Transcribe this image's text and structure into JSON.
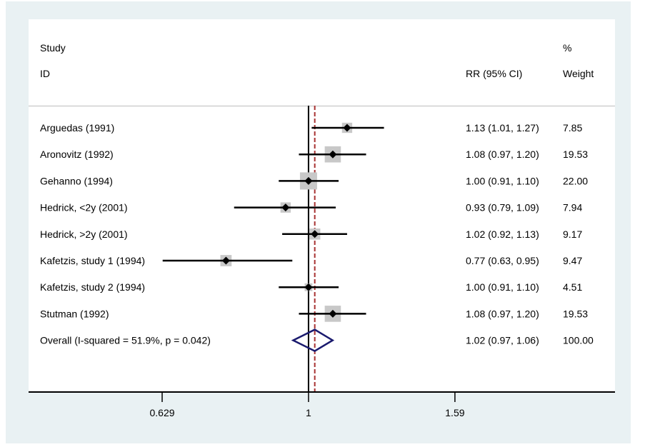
{
  "chart_data": {
    "type": "forest",
    "xscale": "log",
    "xlim": [
      0.412,
      2.64
    ],
    "reference_line": 1,
    "overall_line": 1.02,
    "headers": {
      "study_top": "Study",
      "study_bottom": "ID",
      "rr": "RR (95% CI)",
      "weight_top": "%",
      "weight_bottom": "Weight"
    },
    "studies": [
      {
        "id": "Arguedas (1991)",
        "rr": 1.13,
        "lo": 1.01,
        "hi": 1.27,
        "rr_text": "1.13 (1.01, 1.27)",
        "weight": 7.85,
        "weight_text": "7.85"
      },
      {
        "id": "Aronovitz (1992)",
        "rr": 1.08,
        "lo": 0.97,
        "hi": 1.2,
        "rr_text": "1.08 (0.97, 1.20)",
        "weight": 19.53,
        "weight_text": "19.53"
      },
      {
        "id": "Gehanno (1994)",
        "rr": 1.0,
        "lo": 0.91,
        "hi": 1.1,
        "rr_text": "1.00 (0.91, 1.10)",
        "weight": 22.0,
        "weight_text": "22.00"
      },
      {
        "id": "Hedrick, <2y (2001)",
        "rr": 0.93,
        "lo": 0.79,
        "hi": 1.09,
        "rr_text": "0.93 (0.79, 1.09)",
        "weight": 7.94,
        "weight_text": "7.94"
      },
      {
        "id": "Hedrick, >2y (2001)",
        "rr": 1.02,
        "lo": 0.92,
        "hi": 1.13,
        "rr_text": "1.02 (0.92, 1.13)",
        "weight": 9.17,
        "weight_text": "9.17"
      },
      {
        "id": "Kafetzis, study 1 (1994)",
        "rr": 0.77,
        "lo": 0.63,
        "hi": 0.95,
        "rr_text": "0.77 (0.63, 0.95)",
        "weight": 9.47,
        "weight_text": "9.47"
      },
      {
        "id": "Kafetzis, study 2 (1994)",
        "rr": 1.0,
        "lo": 0.91,
        "hi": 1.1,
        "rr_text": "1.00 (0.91, 1.10)",
        "weight": 4.51,
        "weight_text": "4.51"
      },
      {
        "id": "Stutman (1992)",
        "rr": 1.08,
        "lo": 0.97,
        "hi": 1.2,
        "rr_text": "1.08 (0.97, 1.20)",
        "weight": 19.53,
        "weight_text": "19.53"
      }
    ],
    "overall": {
      "id": "Overall  (I-squared = 51.9%, p = 0.042)",
      "rr": 1.02,
      "lo": 0.97,
      "hi": 1.06,
      "rr_text": "1.02 (0.97, 1.06)",
      "weight": 100.0,
      "weight_text": "100.00"
    },
    "xticks": [
      {
        "value": 0.629,
        "label": "0.629"
      },
      {
        "value": 1,
        "label": "1"
      },
      {
        "value": 1.59,
        "label": "1.59"
      }
    ],
    "colors": {
      "frame": "#e9f1f3",
      "weight_box": "#c8c8c8",
      "point": "#000000",
      "overall_diamond": "#1a1a6e",
      "overall_line": "#a83232",
      "separator": "#d0d0d0"
    }
  }
}
